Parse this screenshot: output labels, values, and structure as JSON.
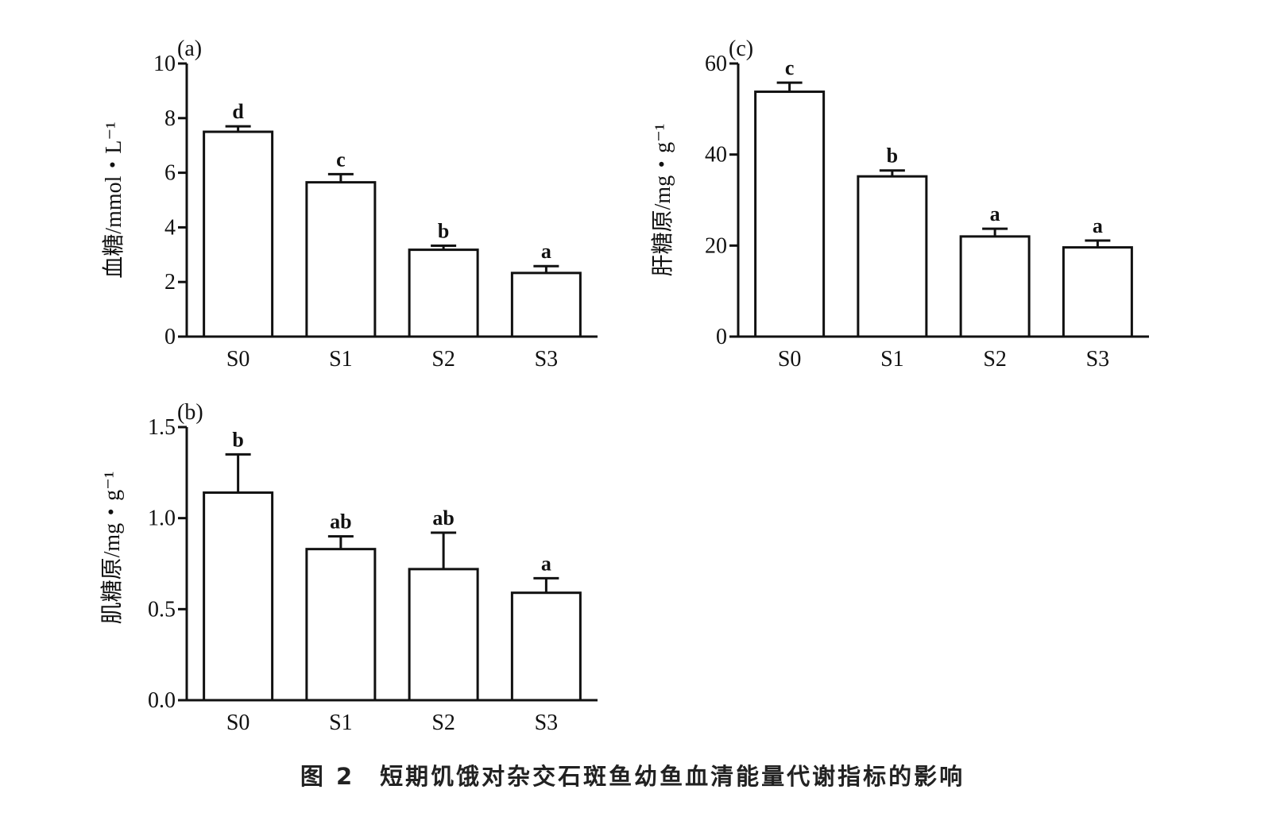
{
  "figure": {
    "caption": "图 2　短期饥饿对杂交石斑鱼幼鱼血清能量代谢指标的影响"
  },
  "chart_data": [
    {
      "panel": "(a)",
      "type": "bar",
      "categories": [
        "S0",
        "S1",
        "S2",
        "S3"
      ],
      "values": [
        7.5,
        5.65,
        3.18,
        2.33
      ],
      "errors": [
        0.2,
        0.3,
        0.15,
        0.25
      ],
      "significance": [
        "d",
        "c",
        "b",
        "a"
      ],
      "ylabel": "血糖/mmol・L⁻¹",
      "ylim": [
        0,
        10
      ],
      "yticks": [
        0,
        2,
        4,
        6,
        8,
        10
      ],
      "ytick_labels": [
        "0",
        "2",
        "4",
        "6",
        "8",
        "10"
      ]
    },
    {
      "panel": "(c)",
      "type": "bar",
      "categories": [
        "S0",
        "S1",
        "S2",
        "S3"
      ],
      "values": [
        53.8,
        35.2,
        22.0,
        19.6
      ],
      "errors": [
        2.0,
        1.3,
        1.7,
        1.5
      ],
      "significance": [
        "c",
        "b",
        "a",
        "a"
      ],
      "ylabel": "肝糖原/mg・g⁻¹",
      "ylim": [
        0,
        60
      ],
      "yticks": [
        0,
        20,
        40,
        60
      ],
      "ytick_labels": [
        "0",
        "20",
        "40",
        "60"
      ]
    },
    {
      "panel": "(b)",
      "type": "bar",
      "categories": [
        "S0",
        "S1",
        "S2",
        "S3"
      ],
      "values": [
        1.14,
        0.83,
        0.72,
        0.59
      ],
      "errors": [
        0.21,
        0.07,
        0.2,
        0.08
      ],
      "significance": [
        "b",
        "ab",
        "ab",
        "a"
      ],
      "ylabel": "肌糖原/mg・g⁻¹",
      "ylim": [
        0,
        1.5
      ],
      "yticks": [
        0,
        0.5,
        1.0,
        1.5
      ],
      "ytick_labels": [
        "0.0",
        "0.5",
        "1.0",
        "1.5"
      ]
    }
  ]
}
